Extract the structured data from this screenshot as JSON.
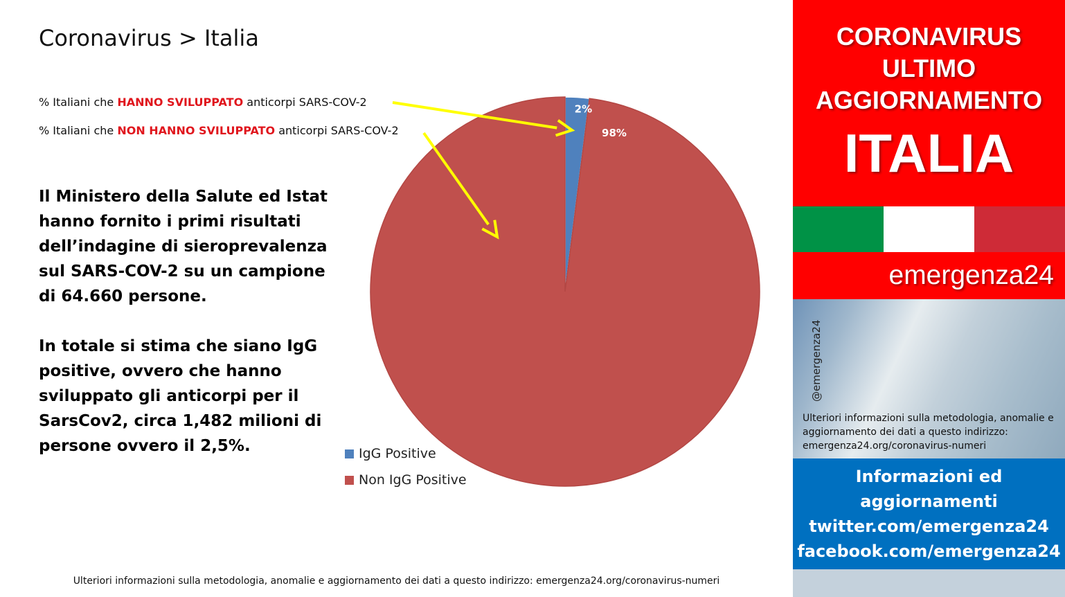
{
  "page": {
    "title": "Coronavirus > Italia"
  },
  "callouts": {
    "line1_prefix": "% Italiani che ",
    "line1_highlight": "HANNO SVILUPPATO",
    "line1_suffix": " anticorpi SARS-COV-2",
    "line2_prefix": "% Italiani che ",
    "line2_highlight": "NON HANNO SVILUPPATO",
    "line2_suffix": " anticorpi SARS-COV-2",
    "arrow_color": "#ffff00"
  },
  "body": {
    "paragraph1": "Il Ministero della Salute ed Istat hanno fornito i primi risultati dell’indagine di sieroprevalenza sul SARS-COV-2 su un campione di 64.660 persone.",
    "paragraph2": "In totale si stima che siano IgG positive, ovvero che hanno sviluppato gli anticorpi per il SarsCov2, circa 1,482 milioni di persone ovvero il 2,5%."
  },
  "chart_data": {
    "type": "pie",
    "categories": [
      "IgG Positive",
      "Non IgG Positive"
    ],
    "values": [
      2,
      98
    ],
    "data_labels": [
      "2%",
      "98%"
    ],
    "colors": [
      "#4f81bd",
      "#c0504d"
    ],
    "legend_position": "bottom-left"
  },
  "footer": {
    "note": "Ulteriori informazioni sulla metodologia, anomalie e aggiornamento dei dati a questo indirizzo: emergenza24.org/coronavirus-numeri"
  },
  "sidebar": {
    "headline1": "CORONAVIRUS",
    "headline2": "ULTIMO",
    "headline3": "AGGIORNAMENTO",
    "country": "ITALIA",
    "flag_colors": [
      "#009246",
      "#ffffff",
      "#ce2b37"
    ],
    "brand": "emergenza24",
    "handle": "@emergenza24",
    "info": "Ulteriori informazioni sulla metodologia, anomalie e aggiornamento dei dati a questo indirizzo: emergenza24.org/coronavirus-numeri",
    "contact_line1": "Informazioni ed",
    "contact_line2": "aggiornamenti",
    "contact_line3": "twitter.com/emergenza24",
    "contact_line4": "facebook.com/emergenza24"
  }
}
